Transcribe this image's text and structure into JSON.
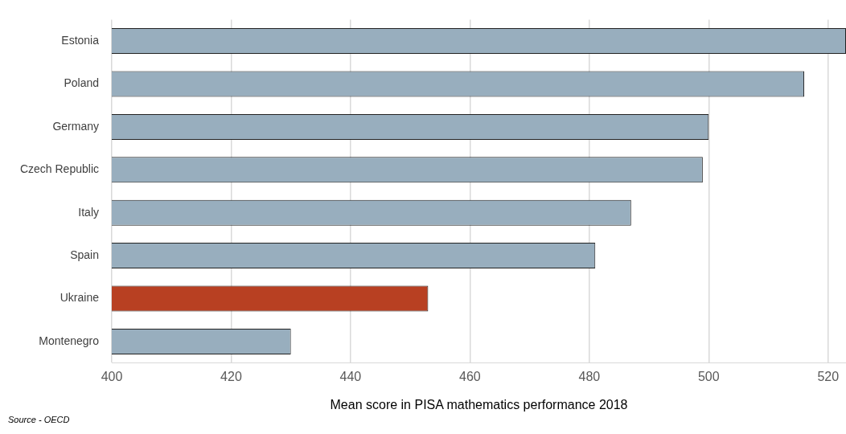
{
  "chart_data": {
    "type": "bar",
    "orientation": "horizontal",
    "xlabel": "Mean score in PISA mathematics performance 2018",
    "categories": [
      "Estonia",
      "Poland",
      "Germany",
      "Czech Republic",
      "Italy",
      "Spain",
      "Ukraine",
      "Montenegro"
    ],
    "values": [
      523,
      516,
      500,
      499,
      487,
      481,
      453,
      430
    ],
    "colors": [
      "#98aebe",
      "#98aebe",
      "#98aebe",
      "#98aebe",
      "#98aebe",
      "#98aebe",
      "#b84022",
      "#98aebe"
    ],
    "xlim": [
      400,
      523
    ],
    "xticks": [
      400,
      420,
      440,
      460,
      480,
      500,
      520
    ],
    "grid": "x",
    "legend": false,
    "annotations": [
      "Source - OECD"
    ]
  }
}
